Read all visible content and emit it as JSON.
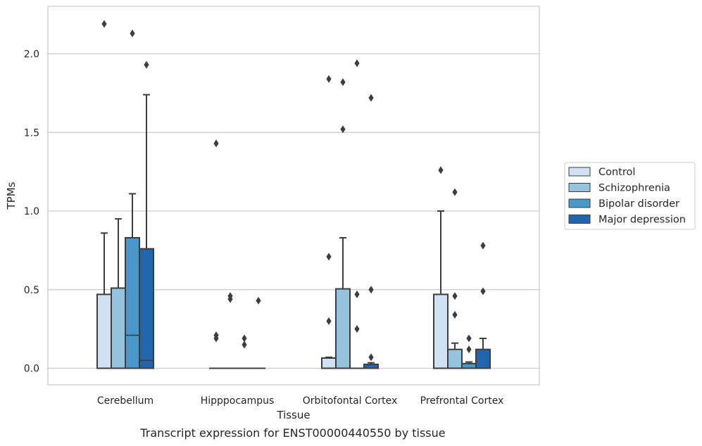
{
  "chart_data": {
    "type": "box",
    "xlabel": "Tissue",
    "ylabel": "TPMs",
    "caption": "Transcript expression for ENST00000440550 by tissue",
    "ylim": [
      -0.11,
      2.32
    ],
    "yticks": [
      "0.0",
      "0.5",
      "1.0",
      "1.5",
      "2.0"
    ],
    "ytick_values": [
      0.0,
      0.5,
      1.0,
      1.5,
      2.0
    ],
    "grid": "horizontal",
    "legend_position": "right",
    "categories": [
      "Cerebellum",
      "Hipppocampus",
      "Orbitofontal Cortex",
      "Prefrontal Cortex"
    ],
    "series": [
      {
        "name": "Control",
        "color": "#d0e1f2",
        "boxes": [
          {
            "q1": 0.0,
            "median": 0.0,
            "q3": 0.47,
            "whisker_low": 0.0,
            "whisker_high": 0.86,
            "outliers": [
              2.19
            ]
          },
          {
            "q1": 0.0,
            "median": 0.0,
            "q3": 0.0,
            "whisker_low": 0.0,
            "whisker_high": 0.0,
            "outliers": [
              1.43,
              0.21,
              0.19
            ]
          },
          {
            "q1": 0.0,
            "median": 0.0,
            "q3": 0.065,
            "whisker_low": 0.0,
            "whisker_high": 0.07,
            "outliers": [
              1.84,
              0.71,
              0.3
            ]
          },
          {
            "q1": 0.0,
            "median": 0.0,
            "q3": 0.47,
            "whisker_low": 0.0,
            "whisker_high": 1.0,
            "outliers": [
              1.26
            ]
          }
        ]
      },
      {
        "name": "Schizophrenia",
        "color": "#94c4df",
        "boxes": [
          {
            "q1": 0.0,
            "median": 0.0,
            "q3": 0.51,
            "whisker_low": 0.0,
            "whisker_high": 0.95,
            "outliers": []
          },
          {
            "q1": 0.0,
            "median": 0.0,
            "q3": 0.0,
            "whisker_low": 0.0,
            "whisker_high": 0.0,
            "outliers": [
              0.46,
              0.44
            ]
          },
          {
            "q1": 0.0,
            "median": 0.0,
            "q3": 0.505,
            "whisker_low": 0.0,
            "whisker_high": 0.83,
            "outliers": [
              1.82,
              1.52
            ]
          },
          {
            "q1": 0.0,
            "median": 0.0,
            "q3": 0.12,
            "whisker_low": 0.0,
            "whisker_high": 0.16,
            "outliers": [
              1.12,
              0.46,
              0.34
            ]
          }
        ]
      },
      {
        "name": "Bipolar disorder",
        "color": "#4a98c9",
        "boxes": [
          {
            "q1": 0.0,
            "median": 0.21,
            "q3": 0.83,
            "whisker_low": 0.0,
            "whisker_high": 1.11,
            "outliers": [
              2.13
            ]
          },
          {
            "q1": 0.0,
            "median": 0.0,
            "q3": 0.0,
            "whisker_low": 0.0,
            "whisker_high": 0.0,
            "outliers": [
              0.19,
              0.15
            ]
          },
          {
            "q1": 0.0,
            "median": 0.0,
            "q3": 0.0,
            "whisker_low": 0.0,
            "whisker_high": 0.0,
            "outliers": [
              1.94,
              0.47,
              0.25
            ]
          },
          {
            "q1": 0.0,
            "median": 0.0,
            "q3": 0.03,
            "whisker_low": 0.0,
            "whisker_high": 0.04,
            "outliers": [
              0.19,
              0.12
            ]
          }
        ]
      },
      {
        "name": "Major depression",
        "color": "#2166ac",
        "boxes": [
          {
            "q1": 0.0,
            "median": 0.05,
            "q3": 0.76,
            "whisker_low": 0.0,
            "whisker_high": 1.74,
            "outliers": [
              1.93
            ]
          },
          {
            "q1": 0.0,
            "median": 0.0,
            "q3": 0.0,
            "whisker_low": 0.0,
            "whisker_high": 0.0,
            "outliers": [
              0.43
            ]
          },
          {
            "q1": 0.0,
            "median": 0.0,
            "q3": 0.025,
            "whisker_low": 0.0,
            "whisker_high": 0.035,
            "outliers": [
              1.72,
              0.5,
              0.07
            ]
          },
          {
            "q1": 0.0,
            "median": 0.0,
            "q3": 0.12,
            "whisker_low": 0.0,
            "whisker_high": 0.19,
            "outliers": [
              0.78,
              0.49
            ]
          }
        ]
      }
    ]
  }
}
